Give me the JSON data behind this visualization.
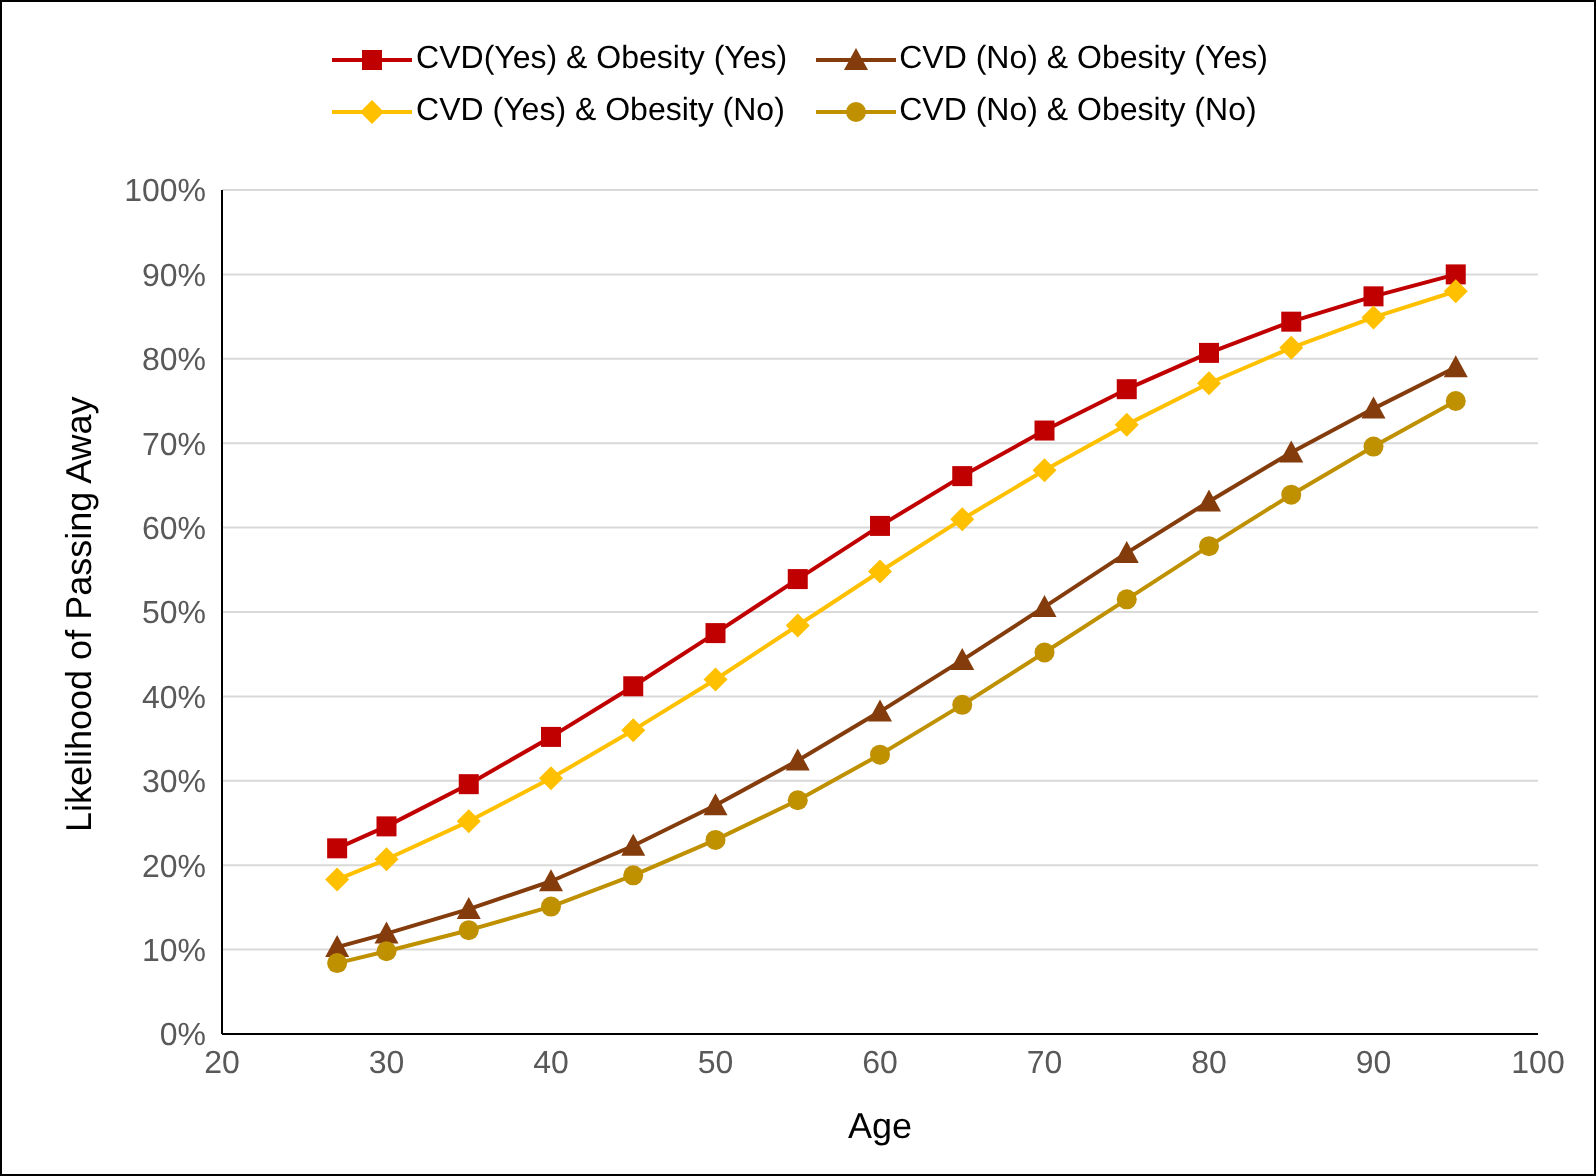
{
  "chart_data": {
    "type": "line",
    "xlabel": "Age",
    "ylabel": "Likelihood of Passing Away",
    "x": [
      27,
      30,
      35,
      40,
      45,
      50,
      55,
      60,
      65,
      70,
      75,
      80,
      85,
      90,
      95
    ],
    "xlim": [
      20,
      100
    ],
    "xticks": [
      20,
      30,
      40,
      50,
      60,
      70,
      80,
      90,
      100
    ],
    "ylim": [
      0,
      100
    ],
    "yticks": [
      {
        "value": 0,
        "label": "0%"
      },
      {
        "value": 10,
        "label": "10%"
      },
      {
        "value": 20,
        "label": "20%"
      },
      {
        "value": 30,
        "label": "30%"
      },
      {
        "value": 40,
        "label": "40%"
      },
      {
        "value": 50,
        "label": "50%"
      },
      {
        "value": 60,
        "label": "60%"
      },
      {
        "value": 70,
        "label": "70%"
      },
      {
        "value": 80,
        "label": "80%"
      },
      {
        "value": 90,
        "label": "90%"
      },
      {
        "value": 100,
        "label": "100%"
      }
    ],
    "grid": "y",
    "legend": "top",
    "line_style": "solid",
    "series": [
      {
        "name": "CVD(Yes) & Obesity (Yes)",
        "color": "#c00000",
        "marker": "square",
        "values": [
          22,
          24.6,
          29.6,
          35.2,
          41.2,
          47.5,
          53.9,
          60.2,
          66.1,
          71.5,
          76.4,
          80.7,
          84.4,
          87.4,
          90
        ]
      },
      {
        "name": "CVD (No) & Obesity (Yes)",
        "color": "#843c0c",
        "marker": "triangle",
        "values": [
          10.3,
          11.9,
          14.8,
          18.1,
          22.3,
          27.1,
          32.4,
          38.2,
          44.3,
          50.6,
          57,
          63.1,
          68.9,
          74.1,
          79
        ]
      },
      {
        "name": "CVD (Yes) & Obesity (No)",
        "color": "#ffc000",
        "marker": "diamond",
        "values": [
          18.3,
          20.7,
          25.2,
          30.3,
          36,
          42,
          48.4,
          54.8,
          61,
          66.8,
          72.2,
          77.1,
          81.3,
          84.9,
          88
        ]
      },
      {
        "name": "CVD (No) & Obesity (No)",
        "color": "#bf9000",
        "marker": "circle",
        "values": [
          8.4,
          9.8,
          12.3,
          15.1,
          18.8,
          23,
          27.7,
          33.1,
          39,
          45.2,
          51.5,
          57.8,
          63.9,
          69.6,
          75
        ]
      }
    ]
  }
}
